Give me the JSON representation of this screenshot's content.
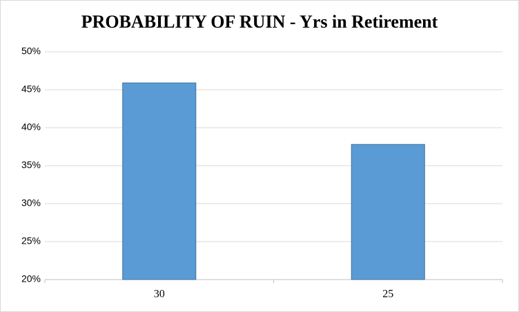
{
  "chart_data": {
    "type": "bar",
    "title": "PROBABILITY OF RUIN - Yrs in Retirement",
    "categories": [
      "30",
      "25"
    ],
    "values": [
      45.9,
      37.8
    ],
    "color": "#5b9bd5",
    "ylim": [
      20,
      50
    ],
    "yticks": [
      {
        "value": 20,
        "label": "20%"
      },
      {
        "value": 25,
        "label": "25%"
      },
      {
        "value": 30,
        "label": "30%"
      },
      {
        "value": 35,
        "label": "35%"
      },
      {
        "value": 40,
        "label": "40%"
      },
      {
        "value": 45,
        "label": "45%"
      },
      {
        "value": 50,
        "label": "50%"
      }
    ],
    "grid": true
  }
}
